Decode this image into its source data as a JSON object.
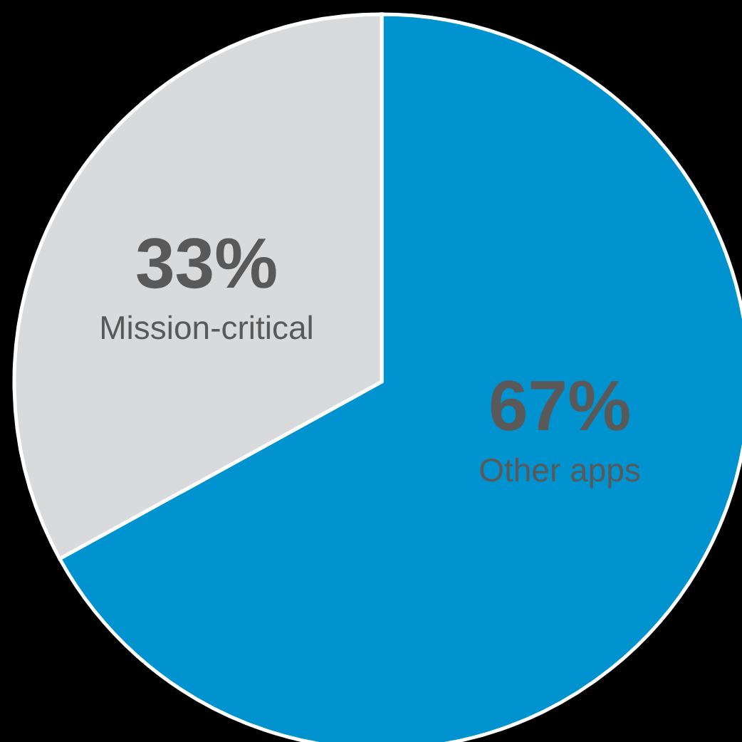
{
  "chart_data": {
    "type": "pie",
    "categories": [
      "Other apps",
      "Mission-critical"
    ],
    "values": [
      67,
      33
    ],
    "colors": [
      "#0093d0",
      "#d9dadb"
    ],
    "value_labels": [
      "67%",
      "33%"
    ]
  }
}
